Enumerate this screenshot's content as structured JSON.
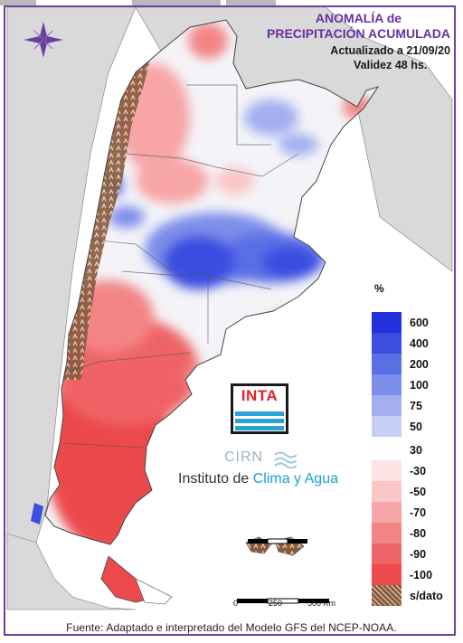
{
  "title_line1": "ANOMALÍA de",
  "title_line2": "PRECIPITACIÓN ACUMULADA",
  "updated": "Actualizado a 21/09/20",
  "validity": "Validez 48 hs.",
  "legend": {
    "unit": "%",
    "items": [
      {
        "label": "600",
        "color": "#2233dd"
      },
      {
        "label": "400",
        "color": "#3a4ee0"
      },
      {
        "label": "200",
        "color": "#5a6ee6"
      },
      {
        "label": "100",
        "color": "#7d8eea"
      },
      {
        "label": "75",
        "color": "#a3aff0"
      },
      {
        "label": "50",
        "color": "#c8cff6"
      },
      {
        "label": "30",
        "color": "#ffffff"
      },
      {
        "label": "-30",
        "color": "#fde3e3"
      },
      {
        "label": "-50",
        "color": "#fac6c6"
      },
      {
        "label": "-70",
        "color": "#f7a5a6"
      },
      {
        "label": "-80",
        "color": "#f38485"
      },
      {
        "label": "-90",
        "color": "#ef6466"
      },
      {
        "label": "-100",
        "color": "#ec4a4d"
      },
      {
        "label": "s/dato",
        "color": "#8a5a3c"
      }
    ]
  },
  "logo": {
    "inta": "INTA",
    "cirn": "CIRN",
    "institute_prefix": "Instituto de ",
    "institute_highlight": "Clima y Agua"
  },
  "scale": {
    "labels": [
      "0",
      "250",
      "500 Km"
    ]
  },
  "source": "Fuente: Adaptado e interpretado del Modelo GFS del NCEP-NOAA.",
  "colors": {
    "frame": "#6b3fa0",
    "title": "#6b2fa0",
    "land_bg": "#d9d9d9",
    "sea": "#ffffff"
  }
}
